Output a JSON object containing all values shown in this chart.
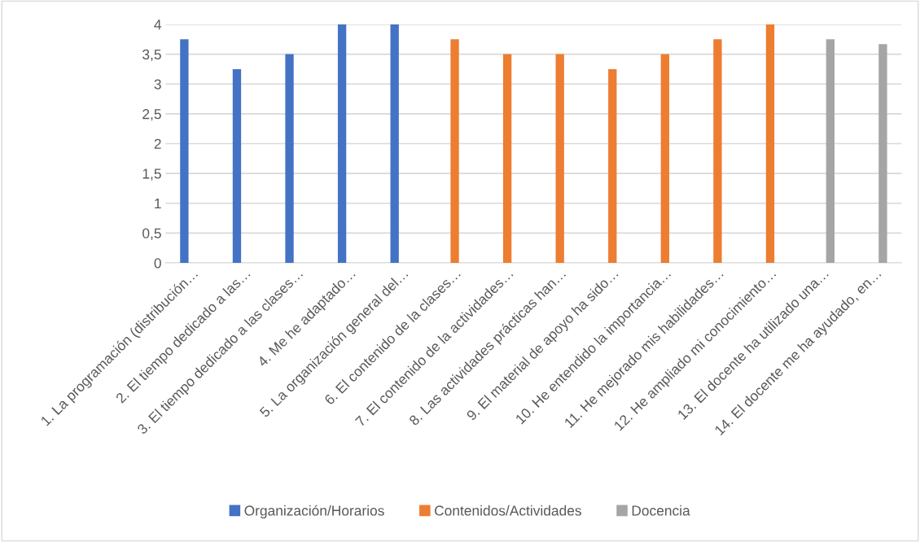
{
  "chart_data": {
    "type": "bar",
    "categories": [
      "1. La programación (distribución…",
      "2. El tiempo dedicado a las…",
      "3. El tiempo dedicado a las clases…",
      "4. Me he adaptado…",
      "5. La organización general del…",
      "6. El contenido de la clases…",
      "7. El contenido de la actividades…",
      "8. Las actividades prácticas han…",
      "9. El material de apoyo ha sido…",
      "10. He entendido la importancia…",
      "11. He mejorado mis habilidades…",
      "12. He ampliado mi conocimiento…",
      "13. El docente ha utilizado una…",
      "14. El docente me ha ayudado, en…"
    ],
    "series": [
      {
        "name": "Organización/Horarios",
        "color": "#4472c4",
        "values": [
          3.75,
          3.25,
          3.5,
          4,
          4,
          null,
          null,
          null,
          null,
          null,
          null,
          null,
          null,
          null
        ]
      },
      {
        "name": "Contenidos/Actividades",
        "color": "#ed7d31",
        "values": [
          null,
          null,
          null,
          null,
          null,
          3.75,
          3.5,
          3.5,
          3.25,
          3.5,
          3.75,
          4,
          null,
          null
        ]
      },
      {
        "name": "Docencia",
        "color": "#a5a5a5",
        "values": [
          null,
          null,
          null,
          null,
          null,
          null,
          null,
          null,
          null,
          null,
          null,
          null,
          3.75,
          3.67
        ]
      }
    ],
    "ylim": [
      0,
      4
    ],
    "yticks": [
      0,
      {
        "value": 0.5,
        "label": "0,5"
      },
      1,
      {
        "value": 1.5,
        "label": "1,5"
      },
      2,
      {
        "value": 2.5,
        "label": "2,5"
      },
      3,
      {
        "value": 3.5,
        "label": "3,5"
      },
      4
    ],
    "grid": "y",
    "legend": "bottom"
  }
}
